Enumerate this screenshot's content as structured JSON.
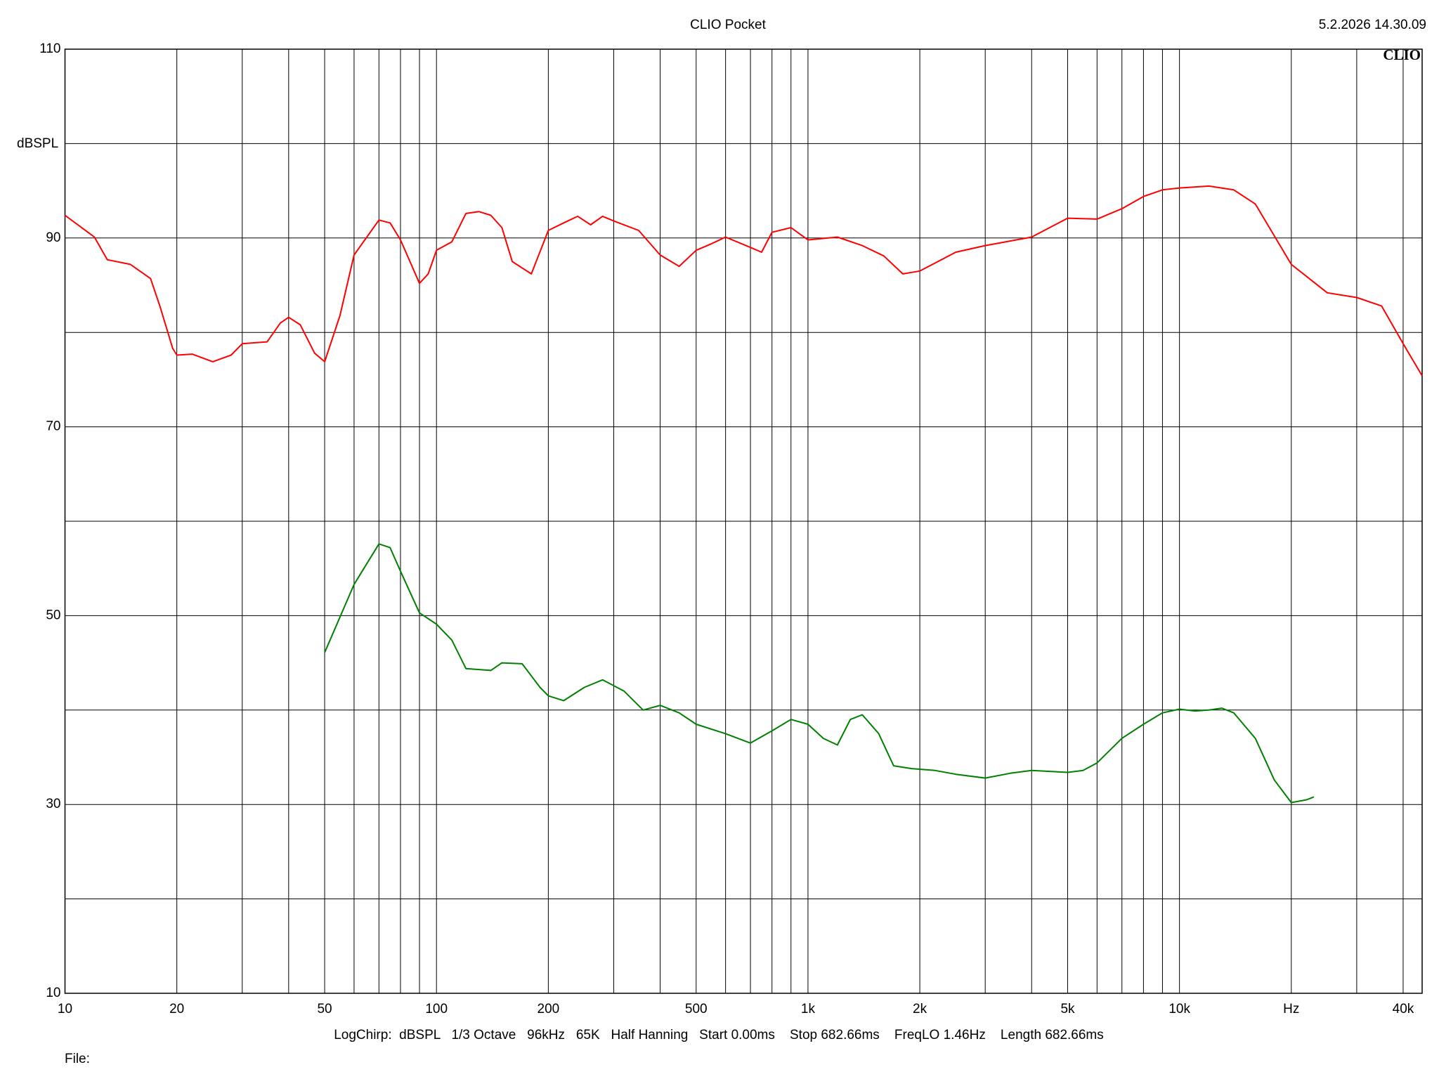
{
  "chart_data": {
    "type": "line",
    "title": "CLIO Pocket",
    "timestamp": "5.2.2026 14.30.09",
    "logo": "CLIO",
    "y_label": "dBSPL",
    "footer": "LogChirp:  dBSPL   1/3 Octave   96kHz   65K   Half Hanning   Start 0.00ms    Stop 682.66ms    FreqLO 1.46Hz    Length 682.66ms",
    "file_label": "File:",
    "x_log": true,
    "grid": true,
    "xlim": [
      10,
      45000
    ],
    "ylim": [
      10,
      110
    ],
    "xticks": [
      10,
      20,
      50,
      100,
      200,
      500,
      {
        "value": 1000,
        "label": "1k"
      },
      {
        "value": 2000,
        "label": "2k"
      },
      {
        "value": 5000,
        "label": "5k"
      },
      {
        "value": 10000,
        "label": "10k"
      },
      {
        "value": 20000,
        "label": "Hz"
      },
      {
        "value": 40000,
        "label": "40k"
      }
    ],
    "x_minor_ticks": [
      30,
      40,
      60,
      70,
      80,
      90,
      300,
      400,
      600,
      700,
      800,
      900,
      3000,
      4000,
      6000,
      7000,
      8000,
      9000,
      30000
    ],
    "yticks": [
      10,
      30,
      50,
      70,
      90,
      110
    ],
    "y_minor_ticks": [
      20,
      40,
      60,
      80,
      100
    ],
    "series": [
      {
        "color": "#ff0000",
        "x": [
          10,
          12,
          13,
          15,
          17,
          18,
          19.5,
          20,
          22,
          25,
          28,
          30,
          35,
          38,
          40,
          43,
          47,
          50,
          55,
          60,
          70,
          75,
          80,
          90,
          95,
          100,
          110,
          120,
          130,
          140,
          150,
          160,
          180,
          200,
          220,
          240,
          260,
          280,
          300,
          350,
          400,
          450,
          500,
          550,
          600,
          700,
          750,
          800,
          900,
          1000,
          1200,
          1400,
          1600,
          1800,
          2000,
          2500,
          3000,
          4000,
          5000,
          6000,
          7000,
          8000,
          9000,
          10000,
          12000,
          14000,
          16000,
          20000,
          25000,
          30000,
          35000,
          40000,
          45000
        ],
        "values": [
          92.4,
          90.1,
          87.7,
          87.2,
          85.7,
          82.8,
          78.3,
          77.6,
          77.7,
          76.9,
          77.6,
          78.8,
          79,
          81,
          81.6,
          80.8,
          77.8,
          76.9,
          81.8,
          88.2,
          91.9,
          91.6,
          89.8,
          85.2,
          86.2,
          88.7,
          89.6,
          92.6,
          92.8,
          92.4,
          91.1,
          87.5,
          86.2,
          90.8,
          91.6,
          92.3,
          91.4,
          92.3,
          91.8,
          90.8,
          88.2,
          87,
          88.7,
          89.4,
          90.1,
          89,
          88.5,
          90.6,
          91.1,
          89.8,
          90.1,
          89.2,
          88.1,
          86.2,
          86.5,
          88.5,
          89.2,
          90.1,
          92.1,
          92,
          93.1,
          94.4,
          95.1,
          95.3,
          95.5,
          95.1,
          93.6,
          87.2,
          84.2,
          83.7,
          82.8,
          78.8,
          75.4
        ]
      },
      {
        "color": "#008000",
        "x": [
          50,
          60,
          70,
          75,
          80,
          90,
          100,
          110,
          120,
          140,
          150,
          170,
          190,
          200,
          220,
          250,
          280,
          320,
          360,
          400,
          450,
          500,
          600,
          700,
          800,
          900,
          1000,
          1100,
          1200,
          1300,
          1400,
          1550,
          1700,
          1900,
          2200,
          2500,
          3000,
          3500,
          4000,
          5000,
          5500,
          6000,
          7000,
          8000,
          9000,
          10000,
          11000,
          12000,
          13000,
          14000,
          16000,
          18000,
          20000,
          22000,
          23000
        ],
        "values": [
          46.1,
          53.3,
          57.6,
          57.2,
          54.7,
          50.3,
          49.1,
          47.4,
          44.4,
          44.2,
          45,
          44.9,
          42.4,
          41.5,
          41,
          42.4,
          43.2,
          42,
          40,
          40.5,
          39.7,
          38.5,
          37.5,
          36.5,
          37.8,
          39,
          38.5,
          37,
          36.3,
          39,
          39.5,
          37.5,
          34.1,
          33.8,
          33.6,
          33.2,
          32.8,
          33.3,
          33.6,
          33.4,
          33.6,
          34.4,
          37,
          38.5,
          39.7,
          40.1,
          39.9,
          40,
          40.2,
          39.7,
          37,
          32.6,
          30.2,
          30.5,
          30.8
        ]
      }
    ]
  }
}
